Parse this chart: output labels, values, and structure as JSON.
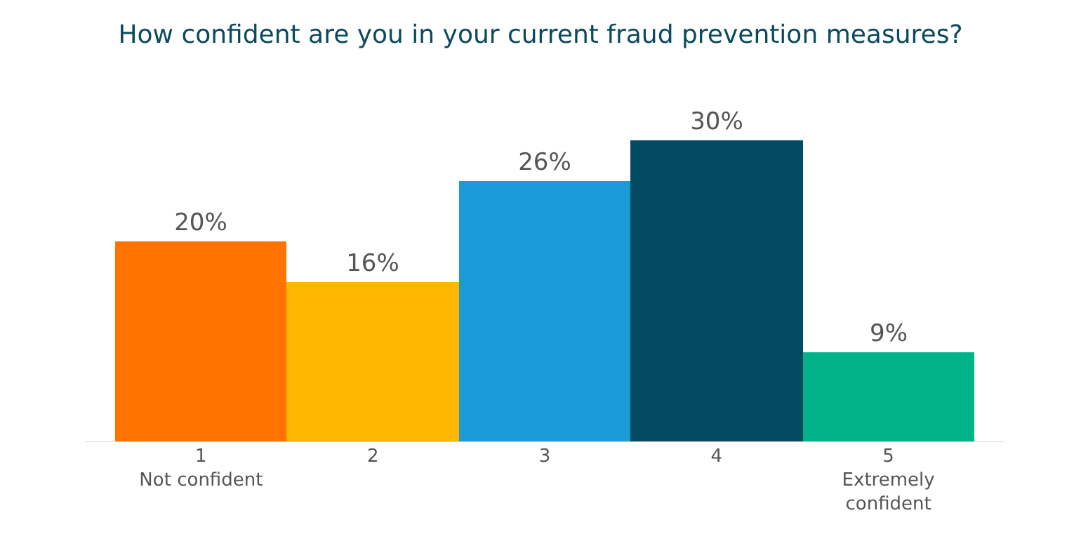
{
  "chart_data": {
    "type": "bar",
    "title": "How confident are you in your current fraud prevention measures?",
    "categories": [
      "1\nNot confident",
      "2",
      "3",
      "4",
      "5\nExtremely\nconfident"
    ],
    "values": [
      20,
      16,
      26,
      30,
      9
    ],
    "colors": [
      "#ff7300",
      "#ffb600",
      "#1a9ad6",
      "#034a63",
      "#00b388"
    ],
    "value_labels": [
      "20%",
      "16%",
      "26%",
      "30%",
      "9%"
    ]
  }
}
